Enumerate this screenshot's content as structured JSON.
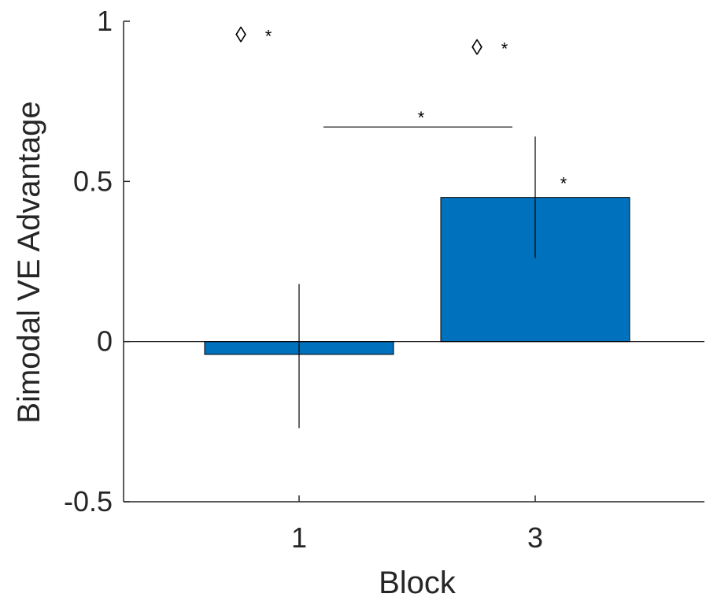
{
  "chart_data": {
    "type": "bar",
    "categories": [
      "1",
      "3"
    ],
    "values": [
      -0.04,
      0.45
    ],
    "error_bars": [
      {
        "low": -0.27,
        "high": 0.18
      },
      {
        "low": 0.26,
        "high": 0.64
      }
    ],
    "xlabel": "Block",
    "ylabel": "Bimodal VE Advantage",
    "ylim": [
      -0.5,
      1
    ],
    "yticks": [
      -0.5,
      0,
      0.5,
      1
    ],
    "yticklabels": [
      "-0.5",
      "0",
      "0.5",
      "1"
    ],
    "grid": false,
    "legend": "none",
    "bar_color": "#0072BD",
    "annotations": {
      "bar_marks": [
        {
          "category": "1",
          "symbol": "◊",
          "significance": "*",
          "y": 0.96
        },
        {
          "category": "3",
          "symbol": "◊",
          "significance": "*",
          "y": 0.92
        }
      ],
      "bar_3_star": {
        "text": "*",
        "y": 0.5
      },
      "comparison": {
        "from": "1",
        "to": "3",
        "text": "*",
        "y": 0.67
      }
    }
  }
}
